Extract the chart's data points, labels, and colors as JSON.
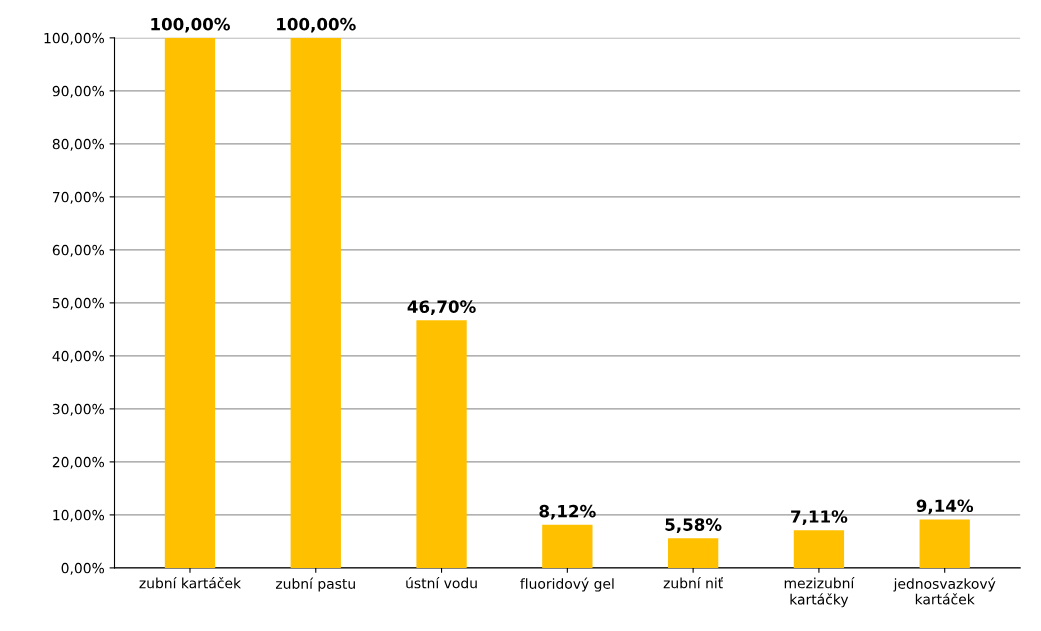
{
  "chart_data": {
    "type": "bar",
    "categories": [
      "zubní kartáček",
      "zubní pastu",
      "ústní vodu",
      "fluoridový gel",
      "zubní niť",
      "mezizubní\nkartáčky",
      "jednosvazkový\nkartáček"
    ],
    "values": [
      100,
      100,
      46.7,
      8.12,
      5.58,
      7.11,
      9.14
    ],
    "value_labels": [
      "100,00%",
      "100,00%",
      "46,70%",
      "8,12%",
      "5,58%",
      "7,11%",
      "9,14%"
    ],
    "color": "#ffc000",
    "ylim": [
      0,
      100
    ],
    "yticks": [
      {
        "value": 0,
        "label": "0,00%"
      },
      {
        "value": 10,
        "label": "10,00%"
      },
      {
        "value": 20,
        "label": "20,00%"
      },
      {
        "value": 30,
        "label": "30,00%"
      },
      {
        "value": 40,
        "label": "40,00%"
      },
      {
        "value": 50,
        "label": "50,00%"
      },
      {
        "value": 60,
        "label": "60,00%"
      },
      {
        "value": 70,
        "label": "70,00%"
      },
      {
        "value": 80,
        "label": "80,00%"
      },
      {
        "value": 90,
        "label": "90,00%"
      },
      {
        "value": 100,
        "label": "100,00%"
      }
    ],
    "grid": "y",
    "legend": false
  }
}
